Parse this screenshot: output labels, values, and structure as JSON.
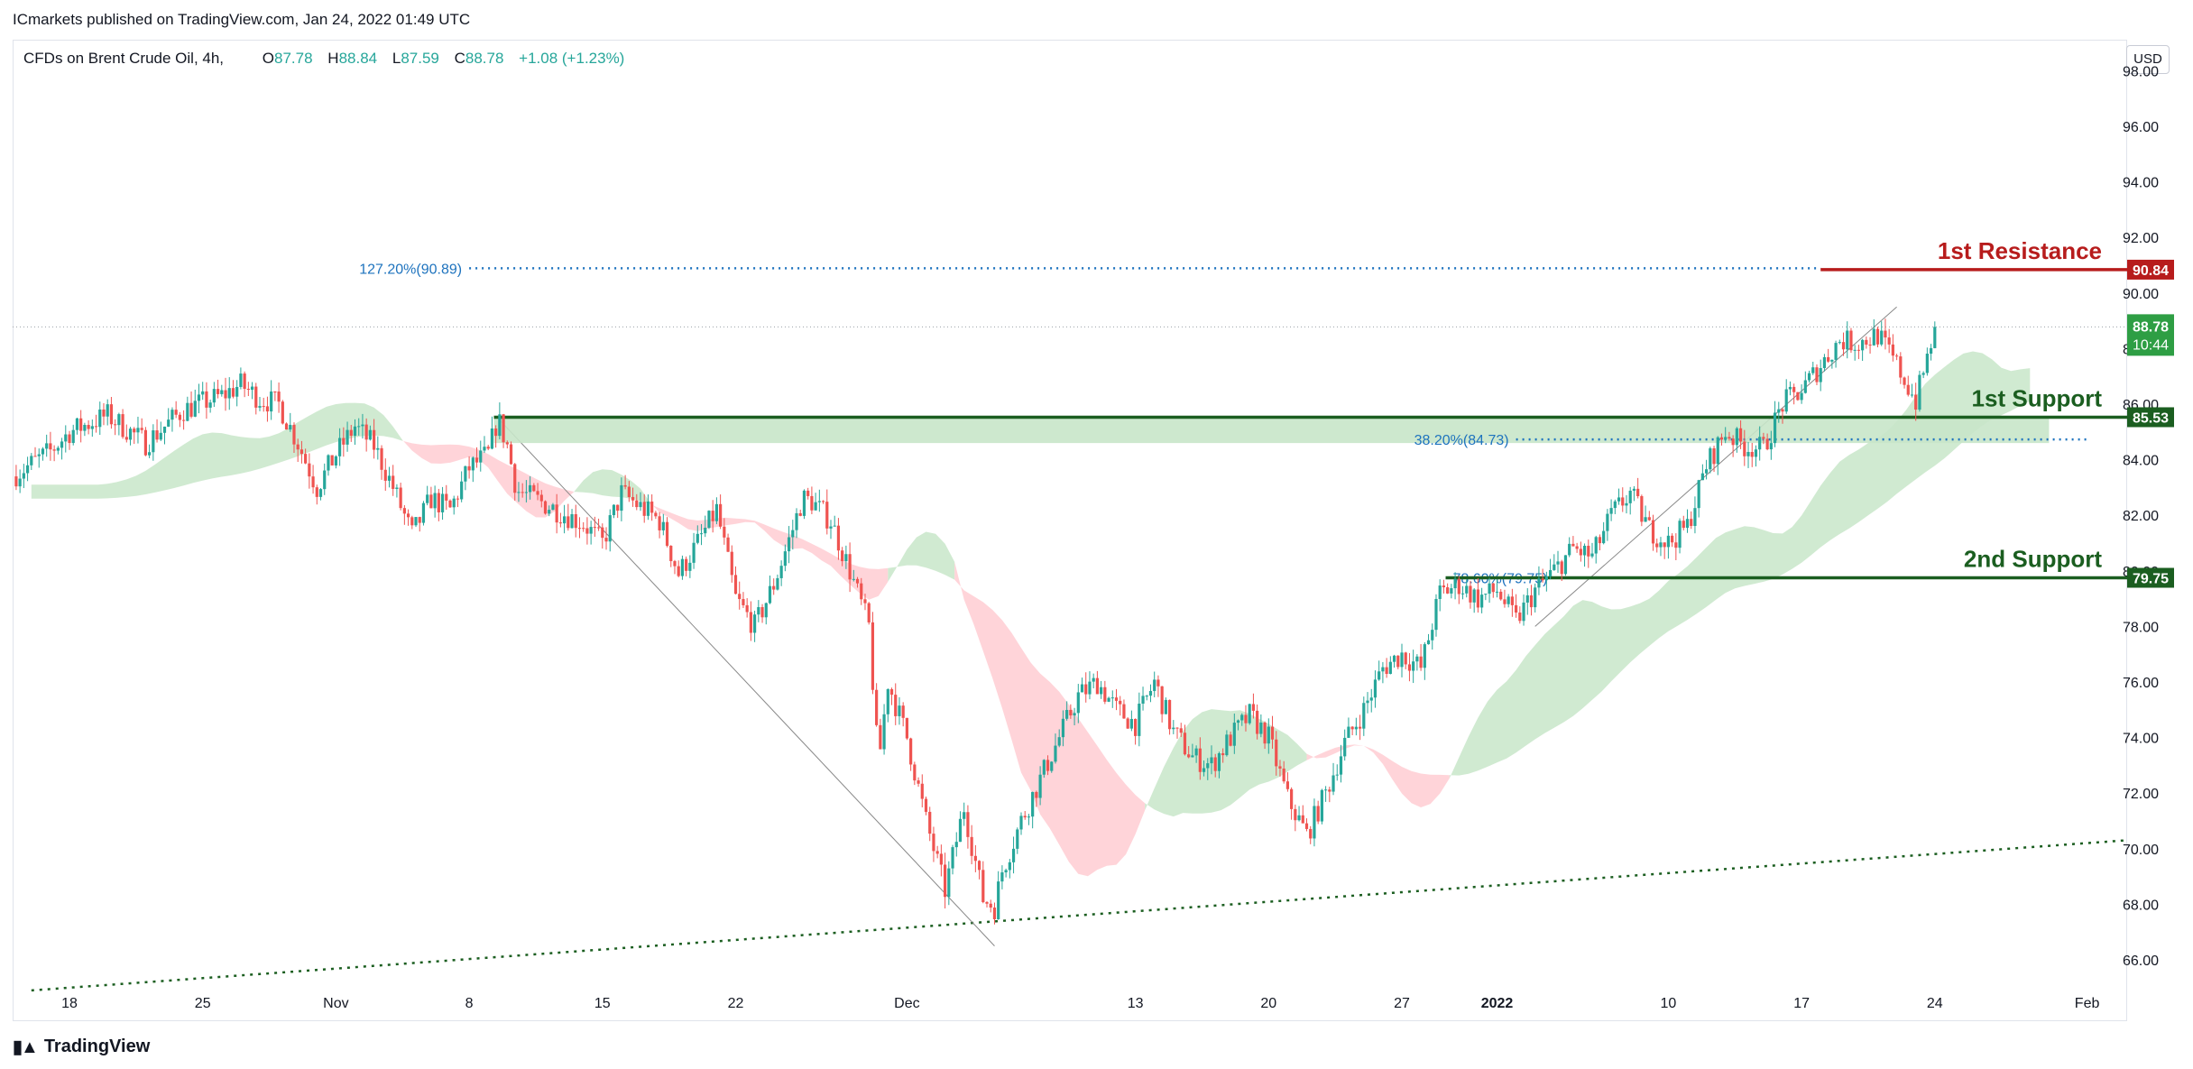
{
  "header": {
    "published_by": "ICmarkets published on TradingView.com, Jan 24, 2022 01:49 UTC"
  },
  "legend": {
    "symbol": "CFDs on Brent Crude Oil, 4h,",
    "open_label": "O",
    "open": "87.78",
    "high_label": "H",
    "high": "88.84",
    "low_label": "L",
    "low": "87.59",
    "close_label": "C",
    "close": "88.78",
    "change": "+1.08 (+1.23%)"
  },
  "currency": "USD",
  "brand": {
    "name": "TradingView"
  },
  "colors": {
    "up": "#26a69a",
    "down": "#ef5350",
    "resistance": "#b71c1c",
    "support": "#1b5e20",
    "fib": "#1e73be",
    "cloud_green": "#c8e6c9",
    "cloud_red": "#ffcdd2"
  },
  "chart_data": {
    "type": "candlestick",
    "title": "",
    "xlabel": "",
    "ylabel": "",
    "ylim": [
      65.0,
      99.0
    ],
    "y_ticks": [
      "66.00",
      "68.00",
      "70.00",
      "72.00",
      "74.00",
      "76.00",
      "78.00",
      "80.00",
      "82.00",
      "84.00",
      "86.00",
      "88.00",
      "90.00",
      "92.00",
      "94.00",
      "96.00",
      "98.00"
    ],
    "x_ticks": [
      {
        "label": "18",
        "day": 0
      },
      {
        "label": "25",
        "day": 7
      },
      {
        "label": "Nov",
        "day": 14
      },
      {
        "label": "8",
        "day": 21
      },
      {
        "label": "15",
        "day": 28
      },
      {
        "label": "22",
        "day": 35
      },
      {
        "label": "Dec",
        "day": 44
      },
      {
        "label": "13",
        "day": 56
      },
      {
        "label": "20",
        "day": 63
      },
      {
        "label": "27",
        "day": 70
      },
      {
        "label": "2022",
        "day": 75
      },
      {
        "label": "10",
        "day": 84
      },
      {
        "label": "17",
        "day": 91
      },
      {
        "label": "24",
        "day": 98
      },
      {
        "label": "Feb",
        "day": 106
      }
    ],
    "price_path": [
      [
        -3,
        83.4
      ],
      [
        -1,
        84.3
      ],
      [
        0,
        85.0
      ],
      [
        2,
        85.6
      ],
      [
        4,
        84.6
      ],
      [
        6,
        85.8
      ],
      [
        8,
        86.3
      ],
      [
        9,
        86.7
      ],
      [
        10,
        86.2
      ],
      [
        11,
        86.0
      ],
      [
        12,
        84.6
      ],
      [
        13,
        83.0
      ],
      [
        14,
        84.2
      ],
      [
        15,
        85.2
      ],
      [
        16,
        84.5
      ],
      [
        17,
        83.0
      ],
      [
        18,
        81.3
      ],
      [
        19,
        82.6
      ],
      [
        20,
        82.2
      ],
      [
        21,
        83.7
      ],
      [
        22,
        84.2
      ],
      [
        22.5,
        85.5
      ],
      [
        23,
        84.5
      ],
      [
        23.5,
        82.9
      ],
      [
        25,
        82.4
      ],
      [
        27,
        81.7
      ],
      [
        28,
        81.0
      ],
      [
        29,
        82.8
      ],
      [
        30,
        82.3
      ],
      [
        31,
        81.8
      ],
      [
        32,
        79.9
      ],
      [
        33,
        81.0
      ],
      [
        34,
        82.2
      ],
      [
        35,
        79.0
      ],
      [
        36,
        78.0
      ],
      [
        37,
        79.5
      ],
      [
        38,
        81.5
      ],
      [
        38.5,
        82.6
      ],
      [
        39,
        82.5
      ],
      [
        40,
        81.8
      ],
      [
        41,
        80.0
      ],
      [
        42,
        78.0
      ],
      [
        42.5,
        73.0
      ],
      [
        43,
        76.0
      ],
      [
        44,
        74.0
      ],
      [
        45,
        71.0
      ],
      [
        46,
        68.5
      ],
      [
        47,
        71.5
      ],
      [
        48,
        68.2
      ],
      [
        48.6,
        67.9
      ],
      [
        49,
        69.2
      ],
      [
        50,
        71.0
      ],
      [
        51,
        72.5
      ],
      [
        52,
        74.0
      ],
      [
        53,
        75.5
      ],
      [
        54,
        76.0
      ],
      [
        55,
        75.0
      ],
      [
        56,
        74.5
      ],
      [
        57,
        76.0
      ],
      [
        58,
        74.2
      ],
      [
        59,
        73.3
      ],
      [
        60,
        73.0
      ],
      [
        61,
        74.0
      ],
      [
        62,
        74.8
      ],
      [
        63,
        74.0
      ],
      [
        64,
        71.8
      ],
      [
        65,
        70.5
      ],
      [
        66,
        72.0
      ],
      [
        67,
        73.8
      ],
      [
        68,
        75.0
      ],
      [
        69,
        76.5
      ],
      [
        70,
        77.0
      ],
      [
        71,
        76.5
      ],
      [
        72,
        79.2
      ],
      [
        73,
        79.5
      ],
      [
        74,
        79.0
      ],
      [
        75,
        79.3
      ],
      [
        76,
        78.2
      ],
      [
        77,
        79.3
      ],
      [
        78,
        80.0
      ],
      [
        79,
        80.8
      ],
      [
        80,
        80.5
      ],
      [
        81,
        82.0
      ],
      [
        82,
        82.8
      ],
      [
        83,
        81.5
      ],
      [
        84,
        81.0
      ],
      [
        85,
        81.6
      ],
      [
        86,
        83.8
      ],
      [
        87,
        85.0
      ],
      [
        88,
        84.5
      ],
      [
        89,
        84.4
      ],
      [
        90,
        86.0
      ],
      [
        91,
        86.5
      ],
      [
        92,
        87.4
      ],
      [
        93,
        88.3
      ],
      [
        94,
        88.2
      ],
      [
        95,
        88.5
      ],
      [
        96,
        87.4
      ],
      [
        97,
        86.1
      ],
      [
        97.5,
        87.4
      ],
      [
        98,
        88.78
      ]
    ],
    "levels": [
      {
        "name": "1st Resistance",
        "value": 90.84,
        "label": "90.84"
      },
      {
        "name": "1st Support",
        "value": 85.53,
        "label": "85.53"
      },
      {
        "name": "2nd Support",
        "value": 79.75,
        "label": "79.75"
      }
    ],
    "fib_levels": [
      {
        "label": "127.20%(90.89)",
        "value": 90.89
      },
      {
        "label": "38.20%(84.73)",
        "value": 84.73
      },
      {
        "label": "78.60%(79.75)",
        "value": 79.75
      }
    ],
    "last_price": {
      "value": 88.78,
      "label": "88.78",
      "countdown": "10:44"
    },
    "trendline_start": {
      "day": -2,
      "value": 64.9
    },
    "trendline_end": {
      "day": 108,
      "value": 70.3
    }
  }
}
